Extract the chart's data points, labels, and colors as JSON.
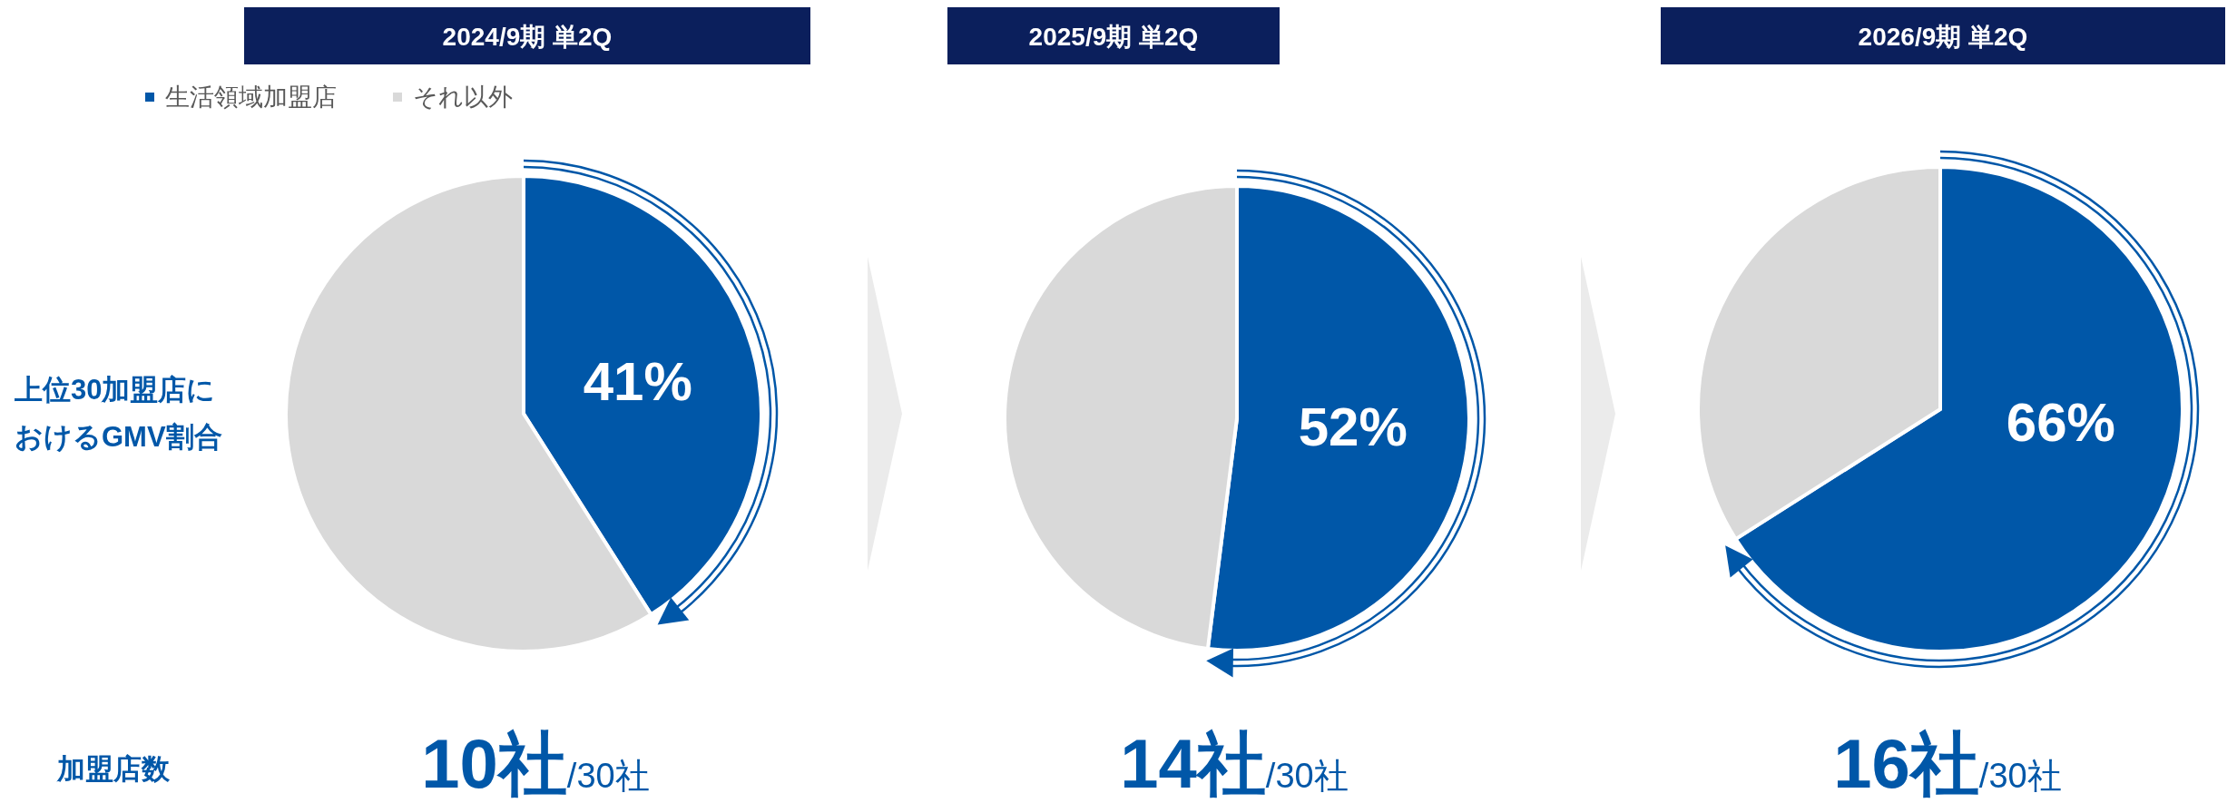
{
  "chart_data": [
    {
      "type": "pie",
      "title": "2024/9期 単2Q",
      "categories": [
        "生活領域加盟店",
        "それ以外"
      ],
      "values": [
        41,
        59
      ],
      "colors": [
        "#0057a8",
        "#d9d9d9"
      ],
      "value_labels": [
        "41%",
        null
      ],
      "legend": "top left",
      "annotations": [
        "上位30加盟店におけるGMV割合",
        "加盟店数",
        "10社/30社"
      ]
    },
    {
      "type": "pie",
      "title": "2025/9期 単2Q",
      "values": [
        52,
        48
      ],
      "colors": [
        "#0057a8",
        "#d9d9d9"
      ],
      "value_labels": [
        "52%",
        null
      ],
      "annotations": [
        "14社/30社"
      ]
    },
    {
      "type": "pie",
      "title": "2026/9期 単2Q",
      "values": [
        66,
        34
      ],
      "colors": [
        "#0057a8",
        "#d9d9d9"
      ],
      "value_labels": [
        "66%",
        null
      ],
      "annotations": [
        "16社/30社"
      ]
    }
  ]
}
